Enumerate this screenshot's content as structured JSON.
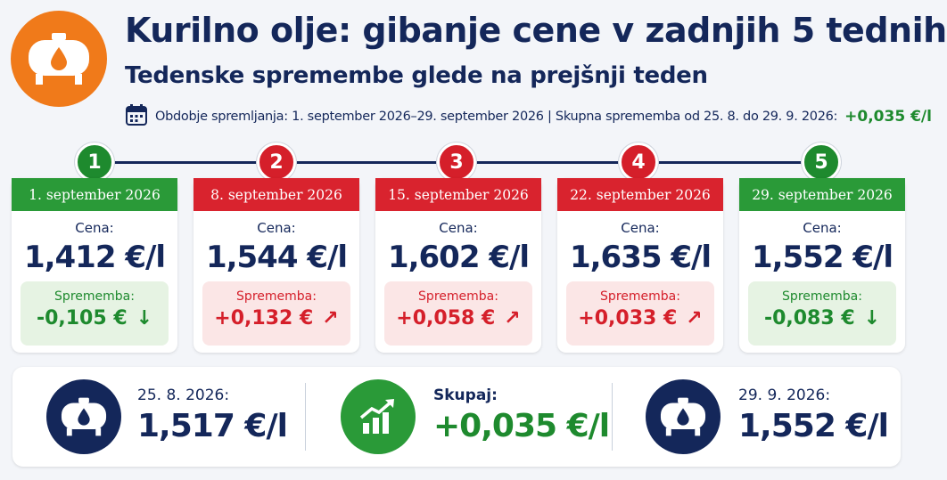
{
  "header": {
    "title": "Kurilno olje: gibanje cene v zadnjih 5 tednih",
    "subtitle": "Tedenske spremembe glede na prejšnji teden",
    "period_text": "Obdobje spremljanja: 1. september 2026–29. september 2026 | Skupna sprememba od 25. 8. do 29. 9. 2026:",
    "period_value": "+0,035 €/l",
    "icon": "oil-tank-icon",
    "calendar_icon": "calendar-icon"
  },
  "colors": {
    "navy": "#14275a",
    "green": "#1e8a2e",
    "red": "#d51f2a",
    "orange": "#f07a1a"
  },
  "weeks": [
    {
      "num": "1",
      "date": "1. september 2026",
      "price_label": "Cena:",
      "price": "1,412 €/l",
      "change_label": "Sprememba:",
      "change": "-0,105 €",
      "arrow": "↓",
      "trend": "green"
    },
    {
      "num": "2",
      "date": "8. september 2026",
      "price_label": "Cena:",
      "price": "1,544 €/l",
      "change_label": "Sprememba:",
      "change": "+0,132 €",
      "arrow": "↗",
      "trend": "red"
    },
    {
      "num": "3",
      "date": "15. september 2026",
      "price_label": "Cena:",
      "price": "1,602 €/l",
      "change_label": "Sprememba:",
      "change": "+0,058 €",
      "arrow": "↗",
      "trend": "red"
    },
    {
      "num": "4",
      "date": "22. september 2026",
      "price_label": "Cena:",
      "price": "1,635 €/l",
      "change_label": "Sprememba:",
      "change": "+0,033 €",
      "arrow": "↗",
      "trend": "red"
    },
    {
      "num": "5",
      "date": "29. september 2026",
      "price_label": "Cena:",
      "price": "1,552 €/l",
      "change_label": "Sprememba:",
      "change": "-0,083 €",
      "arrow": "↓",
      "trend": "green"
    }
  ],
  "summary": {
    "start_label": "25. 8. 2026:",
    "start_value": "1,517 €/l",
    "total_label": "Skupaj:",
    "total_value": "+0,035 €/l",
    "end_label": "29. 9. 2026:",
    "end_value": "1,552 €/l",
    "start_icon": "oil-tank-icon",
    "total_icon": "growth-chart-icon",
    "end_icon": "oil-tank-icon"
  }
}
